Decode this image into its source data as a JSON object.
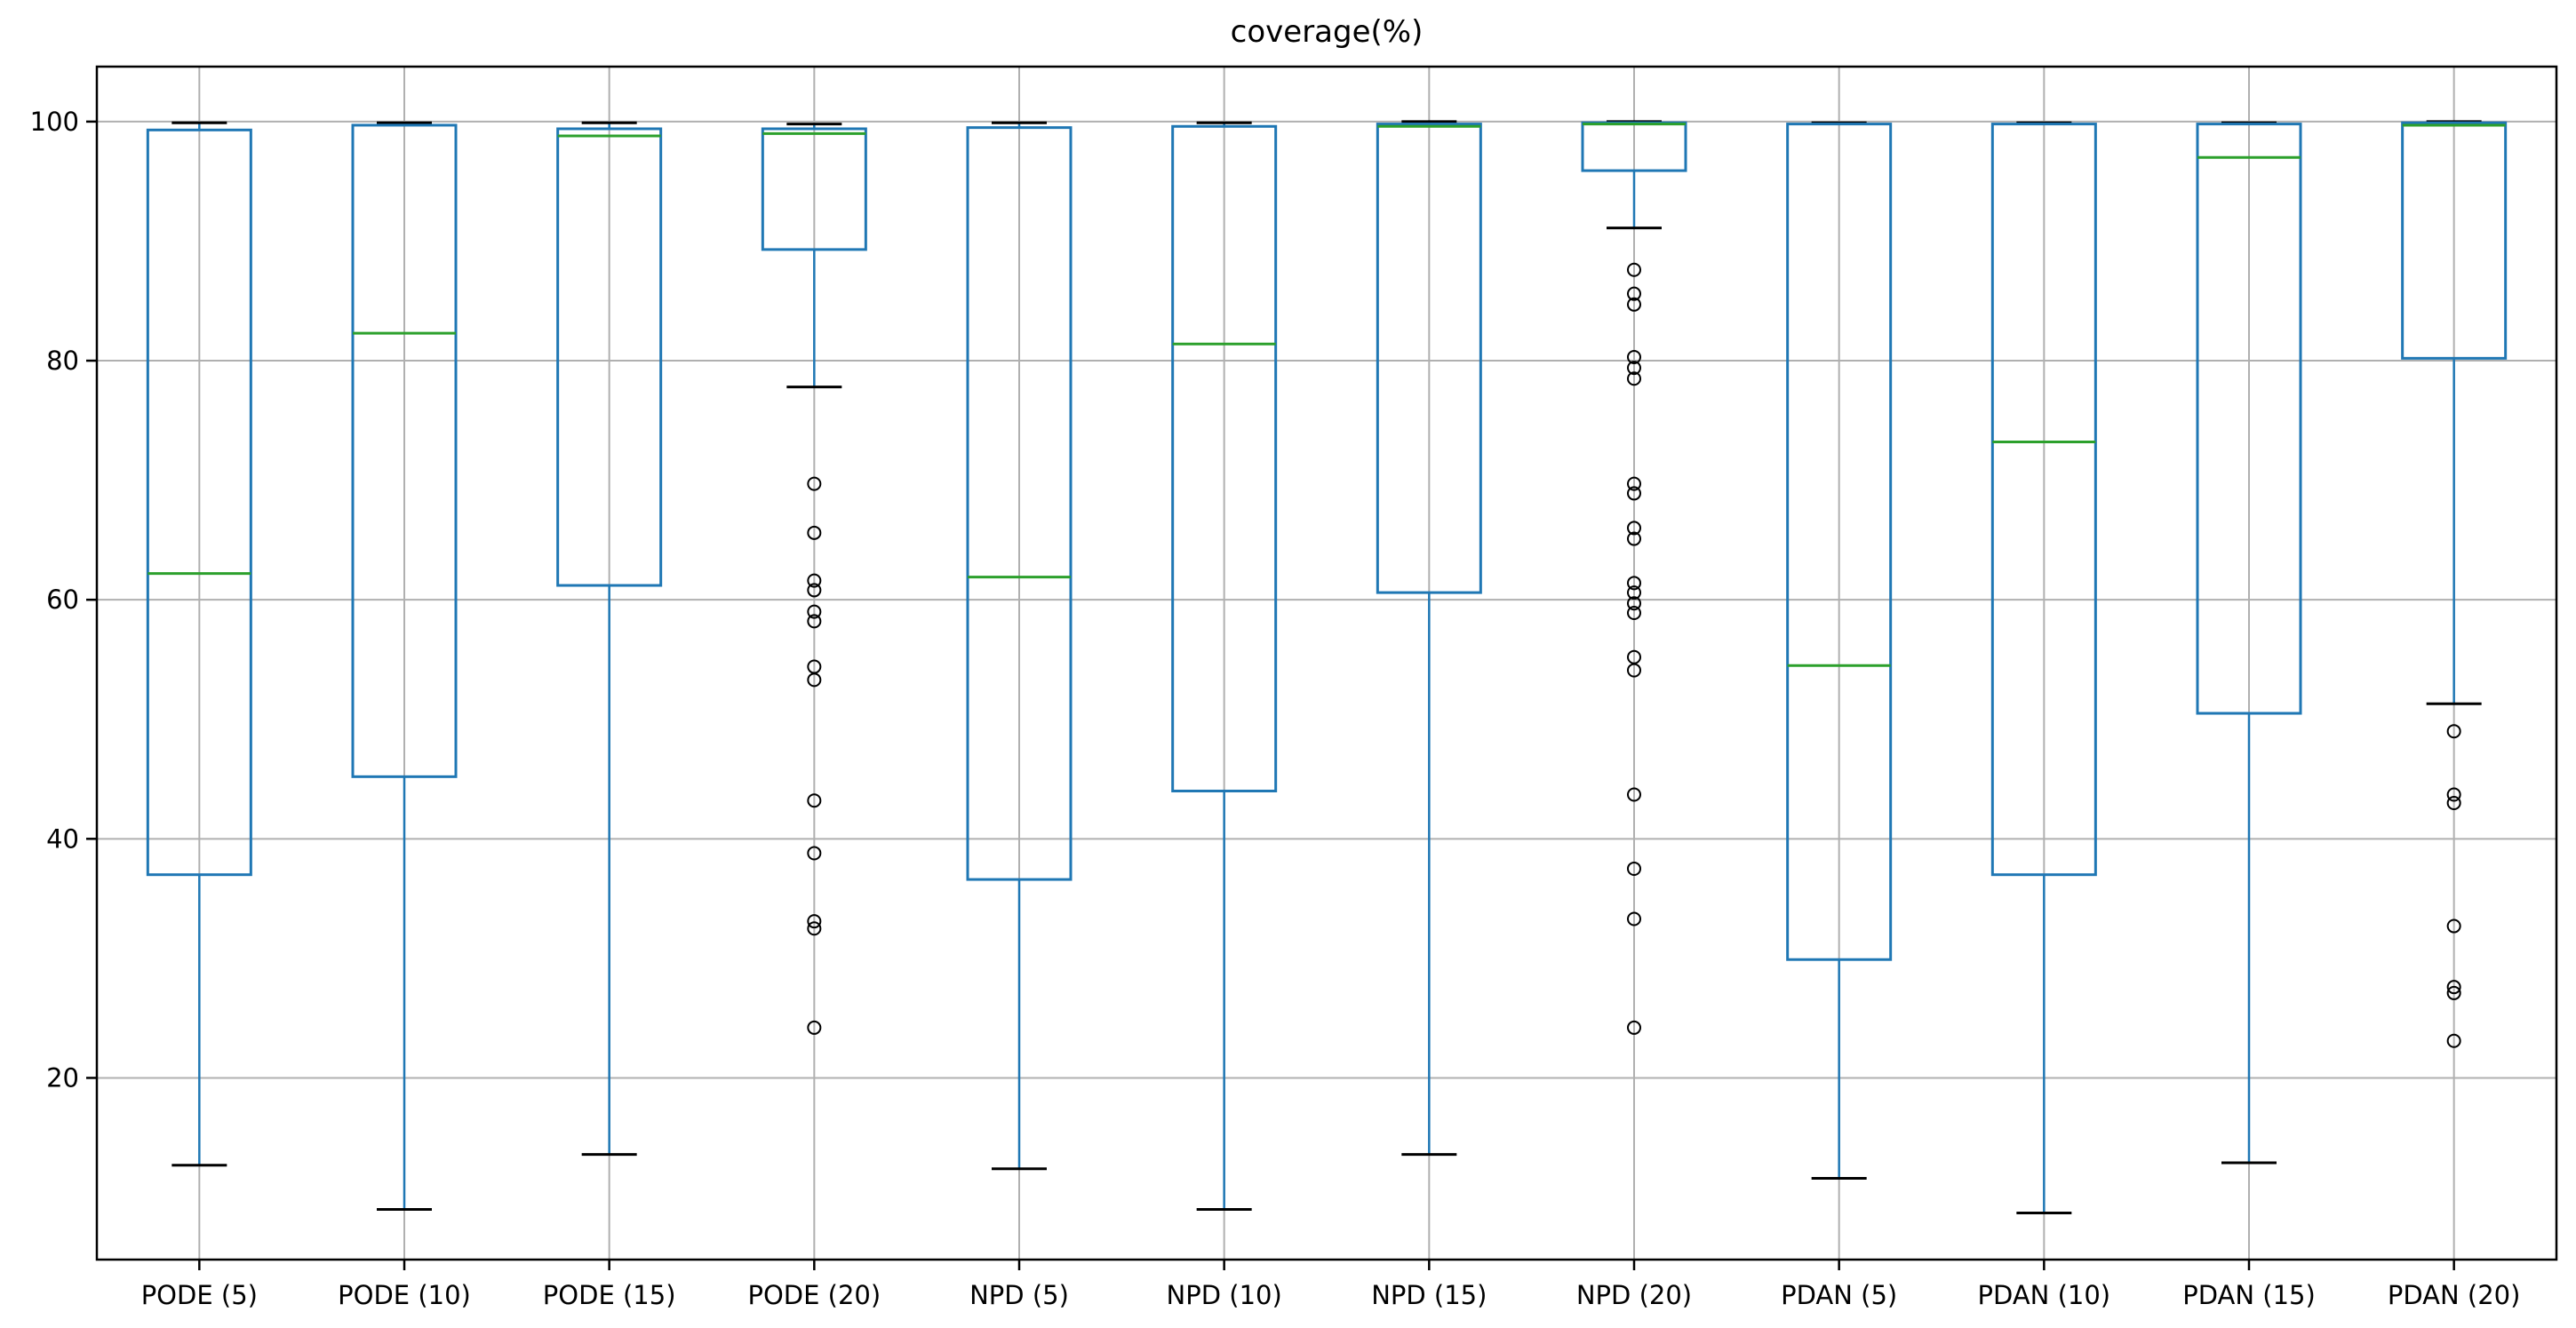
{
  "chart_data": {
    "type": "box",
    "title": "coverage(%)",
    "xlabel": "",
    "ylabel": "",
    "grid": true,
    "legend": null,
    "y_ticks": [
      20,
      40,
      60,
      80,
      100
    ],
    "ylim": [
      4.8,
      104.6
    ],
    "categories": [
      "PODE (5)",
      "PODE (10)",
      "PODE (15)",
      "PODE (20)",
      "NPD (5)",
      "NPD (10)",
      "NPD (15)",
      "NPD (20)",
      "PDAN (5)",
      "PDAN (10)",
      "PDAN (15)",
      "PDAN (20)"
    ],
    "colors": {
      "box": "#1f77b4",
      "whisker": "#1f77b4",
      "median": "#2ca02c",
      "cap": "#000000",
      "flier": "#000000",
      "grid": "#b0b0b0",
      "spine": "#000000",
      "text": "#000000"
    },
    "boxes": [
      {
        "label": "PODE (5)",
        "whislo": 12.7,
        "q1": 37.0,
        "med": 62.2,
        "q3": 99.3,
        "whishi": 99.9,
        "fliers": []
      },
      {
        "label": "PODE (10)",
        "whislo": 9.0,
        "q1": 45.2,
        "med": 82.3,
        "q3": 99.7,
        "whishi": 99.9,
        "fliers": []
      },
      {
        "label": "PODE (15)",
        "whislo": 13.6,
        "q1": 61.2,
        "med": 98.8,
        "q3": 99.4,
        "whishi": 99.9,
        "fliers": []
      },
      {
        "label": "PODE (20)",
        "whislo": 77.8,
        "q1": 89.3,
        "med": 99.0,
        "q3": 99.4,
        "whishi": 99.8,
        "fliers": [
          69.7,
          65.6,
          61.6,
          60.8,
          59.0,
          58.2,
          54.4,
          53.3,
          43.2,
          38.8,
          33.1,
          32.5,
          24.2
        ]
      },
      {
        "label": "NPD (5)",
        "whislo": 12.4,
        "q1": 36.6,
        "med": 61.9,
        "q3": 99.5,
        "whishi": 99.9,
        "fliers": []
      },
      {
        "label": "NPD (10)",
        "whislo": 9.0,
        "q1": 44.0,
        "med": 81.4,
        "q3": 99.6,
        "whishi": 99.9,
        "fliers": []
      },
      {
        "label": "NPD (15)",
        "whislo": 13.6,
        "q1": 60.6,
        "med": 99.6,
        "q3": 99.8,
        "whishi": 100.0,
        "fliers": []
      },
      {
        "label": "NPD (20)",
        "whislo": 91.1,
        "q1": 95.9,
        "med": 99.8,
        "q3": 99.9,
        "whishi": 100.0,
        "fliers": [
          87.6,
          85.6,
          84.7,
          80.3,
          79.4,
          78.5,
          69.7,
          68.9,
          66.0,
          65.1,
          61.4,
          60.6,
          59.7,
          58.9,
          55.2,
          54.1,
          43.7,
          37.5,
          33.3,
          24.2
        ]
      },
      {
        "label": "PDAN (5)",
        "whislo": 11.6,
        "q1": 29.9,
        "med": 54.5,
        "q3": 99.8,
        "whishi": 99.9,
        "fliers": []
      },
      {
        "label": "PDAN (10)",
        "whislo": 8.7,
        "q1": 37.0,
        "med": 73.2,
        "q3": 99.8,
        "whishi": 99.9,
        "fliers": []
      },
      {
        "label": "PDAN (15)",
        "whislo": 12.9,
        "q1": 50.5,
        "med": 97.0,
        "q3": 99.8,
        "whishi": 99.9,
        "fliers": []
      },
      {
        "label": "PDAN (20)",
        "whislo": 51.3,
        "q1": 80.2,
        "med": 99.7,
        "q3": 99.9,
        "whishi": 100.0,
        "fliers": [
          49.0,
          43.7,
          43.0,
          32.7,
          27.6,
          27.1,
          23.1
        ]
      }
    ]
  }
}
